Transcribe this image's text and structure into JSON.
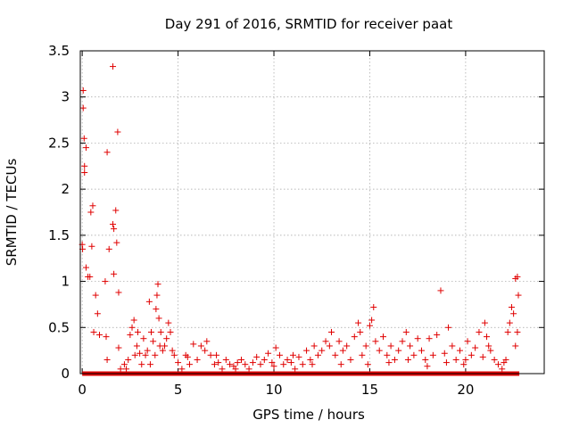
{
  "chart_data": {
    "type": "scatter",
    "title": "Day 291 of 2016, SRMTID for receiver paat",
    "xlabel": "GPS time / hours",
    "ylabel": "SRMTID / TECUs",
    "xlim": [
      -0.1,
      24.1
    ],
    "ylim": [
      0,
      3.5
    ],
    "xticks": [
      0,
      5,
      10,
      15,
      20
    ],
    "yticks": [
      0,
      0.5,
      1,
      1.5,
      2,
      2.5,
      3,
      3.5
    ],
    "xtick_labels": [
      "0",
      "5",
      "10",
      "15",
      "20"
    ],
    "ytick_labels": [
      "0",
      "0.5",
      "1",
      "1.5",
      "2",
      "2.5",
      "3",
      "3.5"
    ],
    "grid": true,
    "marker": "+",
    "color": "#e00000",
    "baseline": {
      "y": 0,
      "x_start": 0,
      "x_end": 22.8
    },
    "series": [
      {
        "name": "SRMTID",
        "points": [
          [
            0.0,
            1.4
          ],
          [
            0.02,
            1.35
          ],
          [
            0.05,
            3.07
          ],
          [
            0.05,
            2.88
          ],
          [
            0.1,
            2.55
          ],
          [
            0.12,
            2.25
          ],
          [
            0.12,
            2.18
          ],
          [
            0.2,
            2.45
          ],
          [
            0.2,
            1.15
          ],
          [
            0.3,
            1.05
          ],
          [
            0.4,
            1.05
          ],
          [
            0.45,
            1.75
          ],
          [
            0.55,
            1.82
          ],
          [
            0.5,
            1.38
          ],
          [
            0.6,
            0.45
          ],
          [
            0.7,
            0.85
          ],
          [
            0.8,
            0.65
          ],
          [
            0.9,
            0.42
          ],
          [
            1.2,
            1.0
          ],
          [
            1.25,
            0.4
          ],
          [
            1.3,
            2.4
          ],
          [
            1.4,
            1.35
          ],
          [
            1.3,
            0.15
          ],
          [
            1.6,
            3.33
          ],
          [
            1.6,
            1.62
          ],
          [
            1.65,
            1.57
          ],
          [
            1.65,
            1.08
          ],
          [
            1.75,
            1.77
          ],
          [
            1.8,
            1.42
          ],
          [
            1.85,
            2.62
          ],
          [
            1.9,
            0.88
          ],
          [
            1.9,
            0.28
          ],
          [
            2.0,
            0.05
          ],
          [
            2.2,
            0.1
          ],
          [
            2.4,
            0.15
          ],
          [
            2.5,
            0.42
          ],
          [
            2.6,
            0.5
          ],
          [
            2.7,
            0.58
          ],
          [
            2.75,
            0.2
          ],
          [
            2.85,
            0.3
          ],
          [
            2.9,
            0.45
          ],
          [
            3.0,
            0.22
          ],
          [
            3.1,
            0.1
          ],
          [
            3.2,
            0.38
          ],
          [
            3.3,
            0.2
          ],
          [
            3.4,
            0.25
          ],
          [
            3.5,
            0.78
          ],
          [
            3.6,
            0.45
          ],
          [
            3.7,
            0.35
          ],
          [
            3.8,
            0.2
          ],
          [
            3.85,
            0.7
          ],
          [
            3.9,
            0.85
          ],
          [
            3.95,
            0.97
          ],
          [
            4.0,
            0.6
          ],
          [
            4.05,
            0.3
          ],
          [
            4.1,
            0.45
          ],
          [
            4.2,
            0.25
          ],
          [
            4.3,
            0.3
          ],
          [
            4.4,
            0.38
          ],
          [
            4.5,
            0.55
          ],
          [
            4.6,
            0.45
          ],
          [
            4.7,
            0.25
          ],
          [
            4.8,
            0.2
          ],
          [
            5.0,
            0.12
          ],
          [
            5.2,
            0.05
          ],
          [
            5.4,
            0.2
          ],
          [
            5.6,
            0.1
          ],
          [
            5.8,
            0.32
          ],
          [
            6.0,
            0.15
          ],
          [
            6.2,
            0.3
          ],
          [
            6.4,
            0.25
          ],
          [
            6.5,
            0.35
          ],
          [
            6.7,
            0.2
          ],
          [
            6.9,
            0.1
          ],
          [
            7.1,
            0.12
          ],
          [
            7.3,
            0.05
          ],
          [
            7.5,
            0.15
          ],
          [
            7.7,
            0.1
          ],
          [
            7.9,
            0.08
          ],
          [
            8.1,
            0.12
          ],
          [
            8.3,
            0.15
          ],
          [
            8.5,
            0.1
          ],
          [
            8.7,
            0.05
          ],
          [
            8.9,
            0.12
          ],
          [
            9.1,
            0.18
          ],
          [
            9.3,
            0.1
          ],
          [
            9.5,
            0.15
          ],
          [
            9.7,
            0.22
          ],
          [
            9.9,
            0.12
          ],
          [
            10.1,
            0.28
          ],
          [
            10.3,
            0.2
          ],
          [
            10.5,
            0.1
          ],
          [
            10.7,
            0.15
          ],
          [
            10.9,
            0.12
          ],
          [
            11.1,
            0.05
          ],
          [
            11.3,
            0.18
          ],
          [
            11.5,
            0.1
          ],
          [
            11.7,
            0.25
          ],
          [
            11.9,
            0.15
          ],
          [
            12.1,
            0.3
          ],
          [
            12.3,
            0.2
          ],
          [
            12.5,
            0.25
          ],
          [
            12.7,
            0.35
          ],
          [
            12.9,
            0.3
          ],
          [
            13.0,
            0.45
          ],
          [
            13.2,
            0.2
          ],
          [
            13.4,
            0.35
          ],
          [
            13.6,
            0.25
          ],
          [
            13.8,
            0.3
          ],
          [
            14.0,
            0.15
          ],
          [
            14.2,
            0.4
          ],
          [
            14.4,
            0.55
          ],
          [
            14.5,
            0.45
          ],
          [
            14.6,
            0.2
          ],
          [
            14.8,
            0.3
          ],
          [
            15.0,
            0.52
          ],
          [
            15.1,
            0.58
          ],
          [
            15.2,
            0.72
          ],
          [
            15.3,
            0.35
          ],
          [
            15.5,
            0.25
          ],
          [
            15.7,
            0.4
          ],
          [
            15.9,
            0.2
          ],
          [
            16.1,
            0.3
          ],
          [
            16.3,
            0.15
          ],
          [
            16.5,
            0.25
          ],
          [
            16.7,
            0.35
          ],
          [
            16.9,
            0.45
          ],
          [
            17.1,
            0.3
          ],
          [
            17.3,
            0.2
          ],
          [
            17.5,
            0.38
          ],
          [
            17.7,
            0.25
          ],
          [
            17.9,
            0.15
          ],
          [
            18.1,
            0.38
          ],
          [
            18.3,
            0.2
          ],
          [
            18.5,
            0.42
          ],
          [
            18.7,
            0.9
          ],
          [
            18.9,
            0.22
          ],
          [
            19.1,
            0.5
          ],
          [
            19.3,
            0.3
          ],
          [
            19.5,
            0.15
          ],
          [
            19.7,
            0.25
          ],
          [
            19.9,
            0.1
          ],
          [
            20.1,
            0.35
          ],
          [
            20.3,
            0.2
          ],
          [
            20.5,
            0.28
          ],
          [
            20.7,
            0.45
          ],
          [
            20.9,
            0.18
          ],
          [
            21.0,
            0.55
          ],
          [
            21.1,
            0.4
          ],
          [
            21.3,
            0.25
          ],
          [
            21.5,
            0.15
          ],
          [
            21.7,
            0.1
          ],
          [
            21.9,
            0.05
          ],
          [
            22.0,
            0.12
          ],
          [
            22.2,
            0.45
          ],
          [
            22.3,
            0.55
          ],
          [
            22.4,
            0.72
          ],
          [
            22.5,
            0.65
          ],
          [
            22.6,
            1.03
          ],
          [
            22.7,
            1.05
          ],
          [
            22.75,
            0.85
          ],
          [
            22.7,
            0.45
          ],
          [
            22.6,
            0.3
          ],
          [
            2.3,
            0.05
          ],
          [
            3.55,
            0.1
          ],
          [
            5.5,
            0.18
          ],
          [
            7.0,
            0.2
          ],
          [
            8.0,
            0.05
          ],
          [
            10.0,
            0.08
          ],
          [
            11.0,
            0.2
          ],
          [
            12.0,
            0.1
          ],
          [
            13.5,
            0.1
          ],
          [
            14.9,
            0.1
          ],
          [
            16.0,
            0.12
          ],
          [
            17.0,
            0.15
          ],
          [
            18.0,
            0.08
          ],
          [
            19.0,
            0.12
          ],
          [
            20.0,
            0.15
          ],
          [
            21.2,
            0.3
          ],
          [
            22.1,
            0.15
          ]
        ]
      }
    ]
  }
}
